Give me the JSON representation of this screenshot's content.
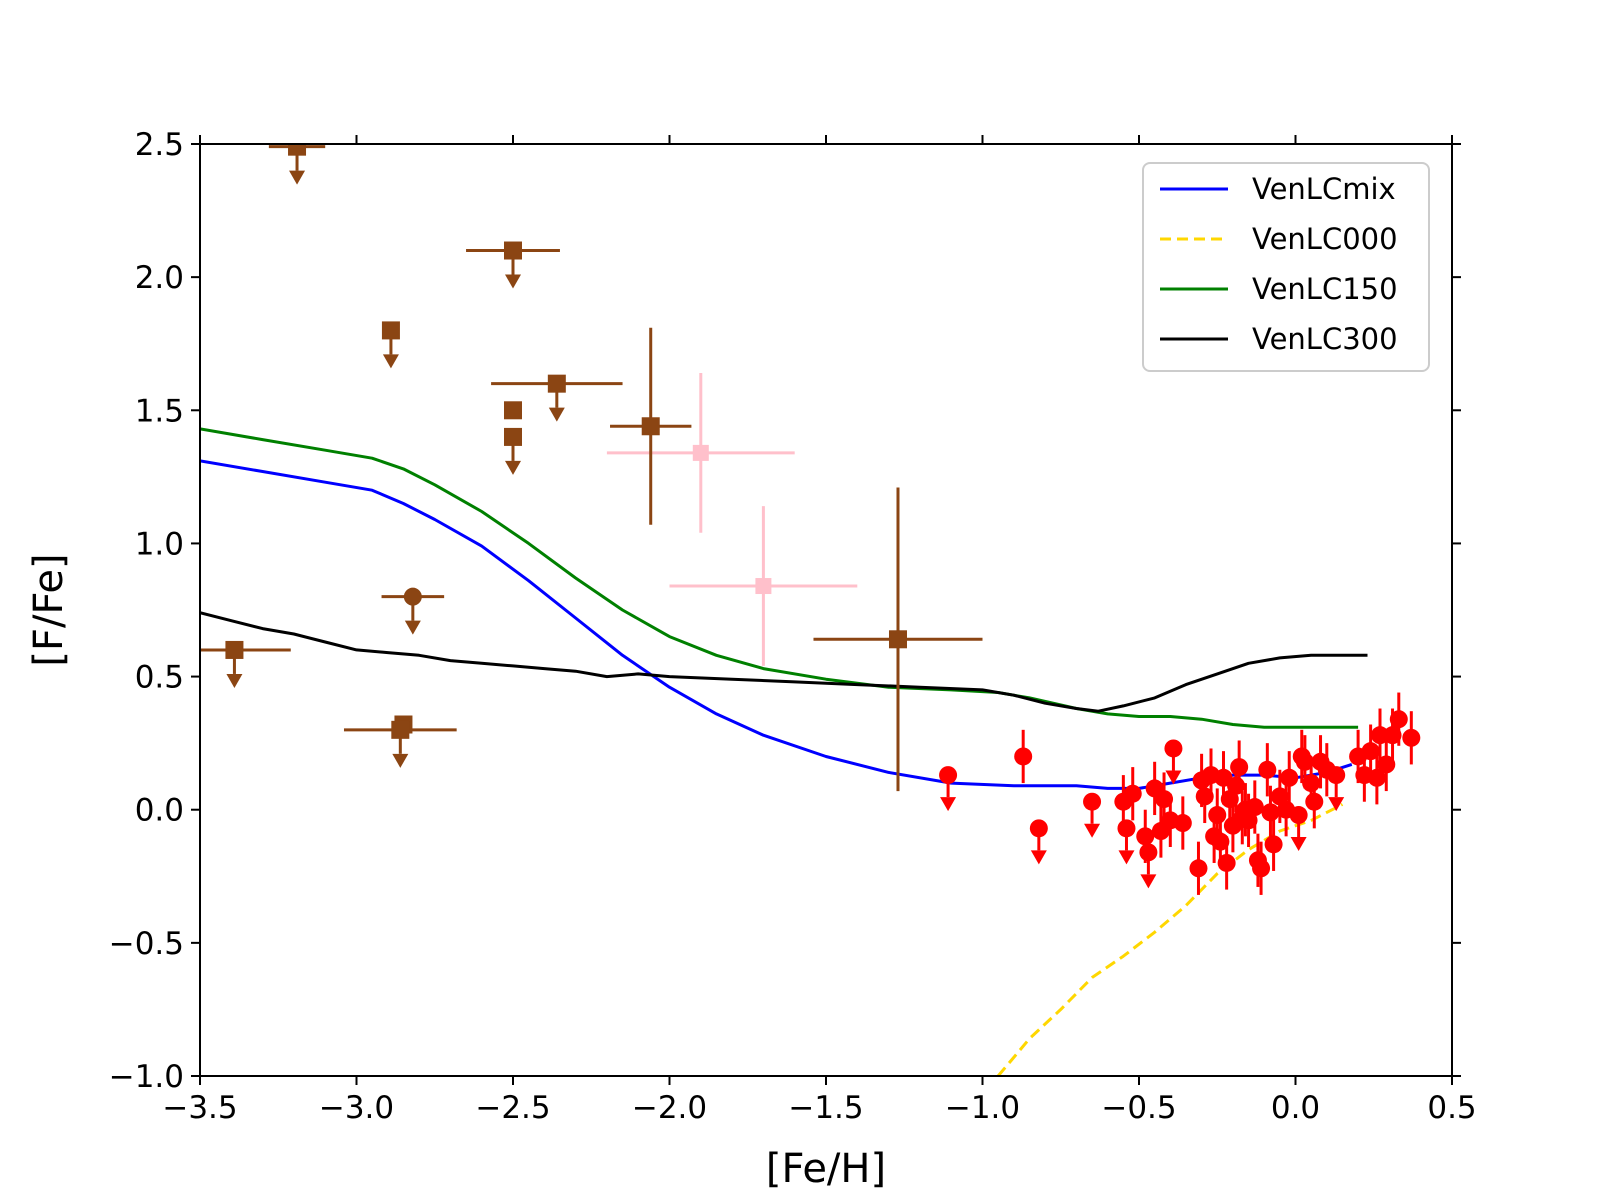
{
  "chart_data": {
    "type": "scatter",
    "title": "",
    "xlabel": "[Fe/H]",
    "ylabel": "[F/Fe]",
    "xlim": [
      -3.5,
      0.5
    ],
    "ylim": [
      -1.0,
      2.5
    ],
    "x_ticks": [
      -3.5,
      -3.0,
      -2.5,
      -2.0,
      -1.5,
      -1.0,
      -0.5,
      0.0,
      0.5
    ],
    "x_tick_labels": [
      "−3.5",
      "−3.0",
      "−2.5",
      "−2.0",
      "−1.5",
      "−1.0",
      "−0.5",
      "0.0",
      "0.5"
    ],
    "y_ticks": [
      -1.0,
      -0.5,
      0.0,
      0.5,
      1.0,
      1.5,
      2.0,
      2.5
    ],
    "y_tick_labels": [
      "−1.0",
      "−0.5",
      "0.0",
      "0.5",
      "1.0",
      "1.5",
      "2.0",
      "2.5"
    ],
    "grid": false,
    "legend_position": "top-right",
    "series": [
      {
        "name": "VenLCmix",
        "kind": "line",
        "color": "#0000ff",
        "dashed": false,
        "x": [
          -3.5,
          -3.3,
          -3.1,
          -2.95,
          -2.85,
          -2.75,
          -2.6,
          -2.45,
          -2.3,
          -2.15,
          -2.0,
          -1.85,
          -1.7,
          -1.5,
          -1.3,
          -1.1,
          -0.9,
          -0.7,
          -0.6,
          -0.5,
          -0.4,
          -0.3,
          -0.2,
          -0.1,
          0.0,
          0.1,
          0.18
        ],
        "y": [
          1.31,
          1.27,
          1.23,
          1.2,
          1.15,
          1.09,
          0.99,
          0.86,
          0.72,
          0.58,
          0.46,
          0.36,
          0.28,
          0.2,
          0.14,
          0.1,
          0.09,
          0.09,
          0.08,
          0.08,
          0.1,
          0.12,
          0.13,
          0.13,
          0.12,
          0.14,
          0.17
        ]
      },
      {
        "name": "VenLC000",
        "kind": "line",
        "color": "#ffd700",
        "dashed": true,
        "x": [
          -0.95,
          -0.9,
          -0.85,
          -0.75,
          -0.65,
          -0.55,
          -0.45,
          -0.35,
          -0.25,
          -0.15,
          -0.05,
          0.05,
          0.15
        ],
        "y": [
          -1.0,
          -0.93,
          -0.86,
          -0.75,
          -0.63,
          -0.55,
          -0.46,
          -0.36,
          -0.24,
          -0.15,
          -0.08,
          -0.04,
          0.02
        ]
      },
      {
        "name": "VenLC150",
        "kind": "line",
        "color": "#008000",
        "dashed": false,
        "x": [
          -3.5,
          -3.3,
          -3.1,
          -2.95,
          -2.85,
          -2.75,
          -2.6,
          -2.45,
          -2.3,
          -2.15,
          -2.0,
          -1.85,
          -1.7,
          -1.5,
          -1.3,
          -1.1,
          -0.95,
          -0.85,
          -0.7,
          -0.6,
          -0.5,
          -0.4,
          -0.3,
          -0.2,
          -0.1,
          0.0,
          0.1,
          0.2
        ],
        "y": [
          1.43,
          1.39,
          1.35,
          1.32,
          1.28,
          1.22,
          1.12,
          1.0,
          0.87,
          0.75,
          0.65,
          0.58,
          0.53,
          0.49,
          0.46,
          0.45,
          0.44,
          0.42,
          0.38,
          0.36,
          0.35,
          0.35,
          0.34,
          0.32,
          0.31,
          0.31,
          0.31,
          0.31
        ]
      },
      {
        "name": "VenLC300",
        "kind": "line",
        "color": "#000000",
        "dashed": false,
        "x": [
          -3.5,
          -3.4,
          -3.3,
          -3.2,
          -3.1,
          -3.0,
          -2.9,
          -2.8,
          -2.7,
          -2.6,
          -2.5,
          -2.4,
          -2.3,
          -2.2,
          -2.1,
          -2.0,
          -1.8,
          -1.6,
          -1.4,
          -1.2,
          -1.0,
          -0.9,
          -0.8,
          -0.7,
          -0.63,
          -0.55,
          -0.45,
          -0.35,
          -0.25,
          -0.15,
          -0.05,
          0.05,
          0.15,
          0.23
        ],
        "y": [
          0.74,
          0.71,
          0.68,
          0.66,
          0.63,
          0.6,
          0.59,
          0.58,
          0.56,
          0.55,
          0.54,
          0.53,
          0.52,
          0.5,
          0.51,
          0.5,
          0.49,
          0.48,
          0.47,
          0.46,
          0.45,
          0.43,
          0.4,
          0.38,
          0.37,
          0.39,
          0.42,
          0.47,
          0.51,
          0.55,
          0.57,
          0.58,
          0.58,
          0.58
        ]
      }
    ],
    "brown_points": [
      {
        "x": -3.19,
        "y": 2.49,
        "xerr": 0.09,
        "yerr": 0,
        "marker": "square",
        "upper": true
      },
      {
        "x": -2.5,
        "y": 2.1,
        "xerr": 0.15,
        "yerr": 0,
        "marker": "square",
        "upper": true
      },
      {
        "x": -2.89,
        "y": 1.8,
        "xerr": 0,
        "yerr": 0,
        "marker": "square",
        "upper": true
      },
      {
        "x": -2.36,
        "y": 1.6,
        "xerr": 0.21,
        "yerr": 0,
        "marker": "square",
        "upper": true
      },
      {
        "x": -2.5,
        "y": 1.5,
        "xerr": 0,
        "yerr": 0,
        "marker": "square",
        "upper": false
      },
      {
        "x": -2.5,
        "y": 1.4,
        "xerr": 0,
        "yerr": 0,
        "marker": "square",
        "upper": true
      },
      {
        "x": -2.06,
        "y": 1.44,
        "xerr": 0.13,
        "yerr": 0.37,
        "marker": "square",
        "upper": false
      },
      {
        "x": -2.82,
        "y": 0.8,
        "xerr": 0.1,
        "yerr": 0,
        "marker": "circle",
        "upper": true
      },
      {
        "x": -3.39,
        "y": 0.6,
        "xerr": 0.18,
        "yerr": 0,
        "marker": "square",
        "upper": true
      },
      {
        "x": -2.85,
        "y": 0.32,
        "xerr": 0,
        "yerr": 0,
        "marker": "square",
        "upper": false
      },
      {
        "x": -2.86,
        "y": 0.3,
        "xerr": 0.18,
        "yerr": 0,
        "marker": "square",
        "upper": true
      },
      {
        "x": -1.27,
        "y": 0.64,
        "xerr": 0.27,
        "yerr": 0.57,
        "marker": "square",
        "upper": false
      }
    ],
    "pink_points": [
      {
        "x": -1.9,
        "y": 1.34,
        "xerr": 0.3,
        "yerr": 0.3
      },
      {
        "x": -1.7,
        "y": 0.84,
        "xerr": 0.3,
        "yerr": 0.3
      }
    ],
    "red_points": [
      {
        "x": -1.11,
        "y": 0.13,
        "upper": true
      },
      {
        "x": -0.87,
        "y": 0.2,
        "upper": false
      },
      {
        "x": -0.82,
        "y": -0.07,
        "upper": true
      },
      {
        "x": -0.65,
        "y": 0.03,
        "upper": true
      },
      {
        "x": -0.55,
        "y": 0.03,
        "upper": false
      },
      {
        "x": -0.54,
        "y": -0.07,
        "upper": true
      },
      {
        "x": -0.52,
        "y": 0.06,
        "upper": false
      },
      {
        "x": -0.48,
        "y": -0.1,
        "upper": false
      },
      {
        "x": -0.47,
        "y": -0.16,
        "upper": true
      },
      {
        "x": -0.45,
        "y": 0.08,
        "upper": false
      },
      {
        "x": -0.43,
        "y": -0.08,
        "upper": false
      },
      {
        "x": -0.42,
        "y": 0.04,
        "upper": false
      },
      {
        "x": -0.4,
        "y": -0.04,
        "upper": false
      },
      {
        "x": -0.39,
        "y": 0.23,
        "upper": true
      },
      {
        "x": -0.36,
        "y": -0.05,
        "upper": false
      },
      {
        "x": -0.31,
        "y": -0.22,
        "upper": false
      },
      {
        "x": -0.3,
        "y": 0.11,
        "upper": false
      },
      {
        "x": -0.29,
        "y": 0.05,
        "upper": false
      },
      {
        "x": -0.27,
        "y": 0.13,
        "upper": false
      },
      {
        "x": -0.26,
        "y": -0.1,
        "upper": false
      },
      {
        "x": -0.25,
        "y": -0.02,
        "upper": false
      },
      {
        "x": -0.24,
        "y": -0.12,
        "upper": false
      },
      {
        "x": -0.23,
        "y": 0.12,
        "upper": false
      },
      {
        "x": -0.22,
        "y": -0.2,
        "upper": false
      },
      {
        "x": -0.21,
        "y": 0.04,
        "upper": false
      },
      {
        "x": -0.2,
        "y": -0.06,
        "upper": false
      },
      {
        "x": -0.19,
        "y": 0.09,
        "upper": false
      },
      {
        "x": -0.18,
        "y": 0.16,
        "upper": false
      },
      {
        "x": -0.17,
        "y": -0.03,
        "upper": false
      },
      {
        "x": -0.16,
        "y": 0.0,
        "upper": false
      },
      {
        "x": -0.15,
        "y": -0.04,
        "upper": false
      },
      {
        "x": -0.13,
        "y": 0.01,
        "upper": false
      },
      {
        "x": -0.12,
        "y": -0.19,
        "upper": false
      },
      {
        "x": -0.11,
        "y": -0.22,
        "upper": false
      },
      {
        "x": -0.09,
        "y": 0.15,
        "upper": false
      },
      {
        "x": -0.08,
        "y": -0.01,
        "upper": false
      },
      {
        "x": -0.07,
        "y": -0.13,
        "upper": false
      },
      {
        "x": -0.05,
        "y": 0.05,
        "upper": false
      },
      {
        "x": -0.03,
        "y": 0.0,
        "upper": false
      },
      {
        "x": -0.02,
        "y": 0.12,
        "upper": false
      },
      {
        "x": 0.01,
        "y": -0.02,
        "upper": true
      },
      {
        "x": 0.02,
        "y": 0.2,
        "upper": false
      },
      {
        "x": 0.03,
        "y": 0.18,
        "upper": false
      },
      {
        "x": 0.05,
        "y": 0.1,
        "upper": false
      },
      {
        "x": 0.06,
        "y": 0.03,
        "upper": false
      },
      {
        "x": 0.08,
        "y": 0.18,
        "upper": false
      },
      {
        "x": 0.1,
        "y": 0.15,
        "upper": false
      },
      {
        "x": 0.13,
        "y": 0.13,
        "upper": true
      },
      {
        "x": 0.2,
        "y": 0.2,
        "upper": false
      },
      {
        "x": 0.22,
        "y": 0.13,
        "upper": false
      },
      {
        "x": 0.24,
        "y": 0.22,
        "upper": false
      },
      {
        "x": 0.26,
        "y": 0.12,
        "upper": false
      },
      {
        "x": 0.27,
        "y": 0.28,
        "upper": false
      },
      {
        "x": 0.29,
        "y": 0.17,
        "upper": false
      },
      {
        "x": 0.31,
        "y": 0.28,
        "upper": false
      },
      {
        "x": 0.33,
        "y": 0.34,
        "upper": false
      },
      {
        "x": 0.37,
        "y": 0.27,
        "upper": false
      }
    ],
    "colors": {
      "brown": "#8b4513",
      "pink": "#ffc0cb",
      "red": "#ff0000"
    }
  }
}
